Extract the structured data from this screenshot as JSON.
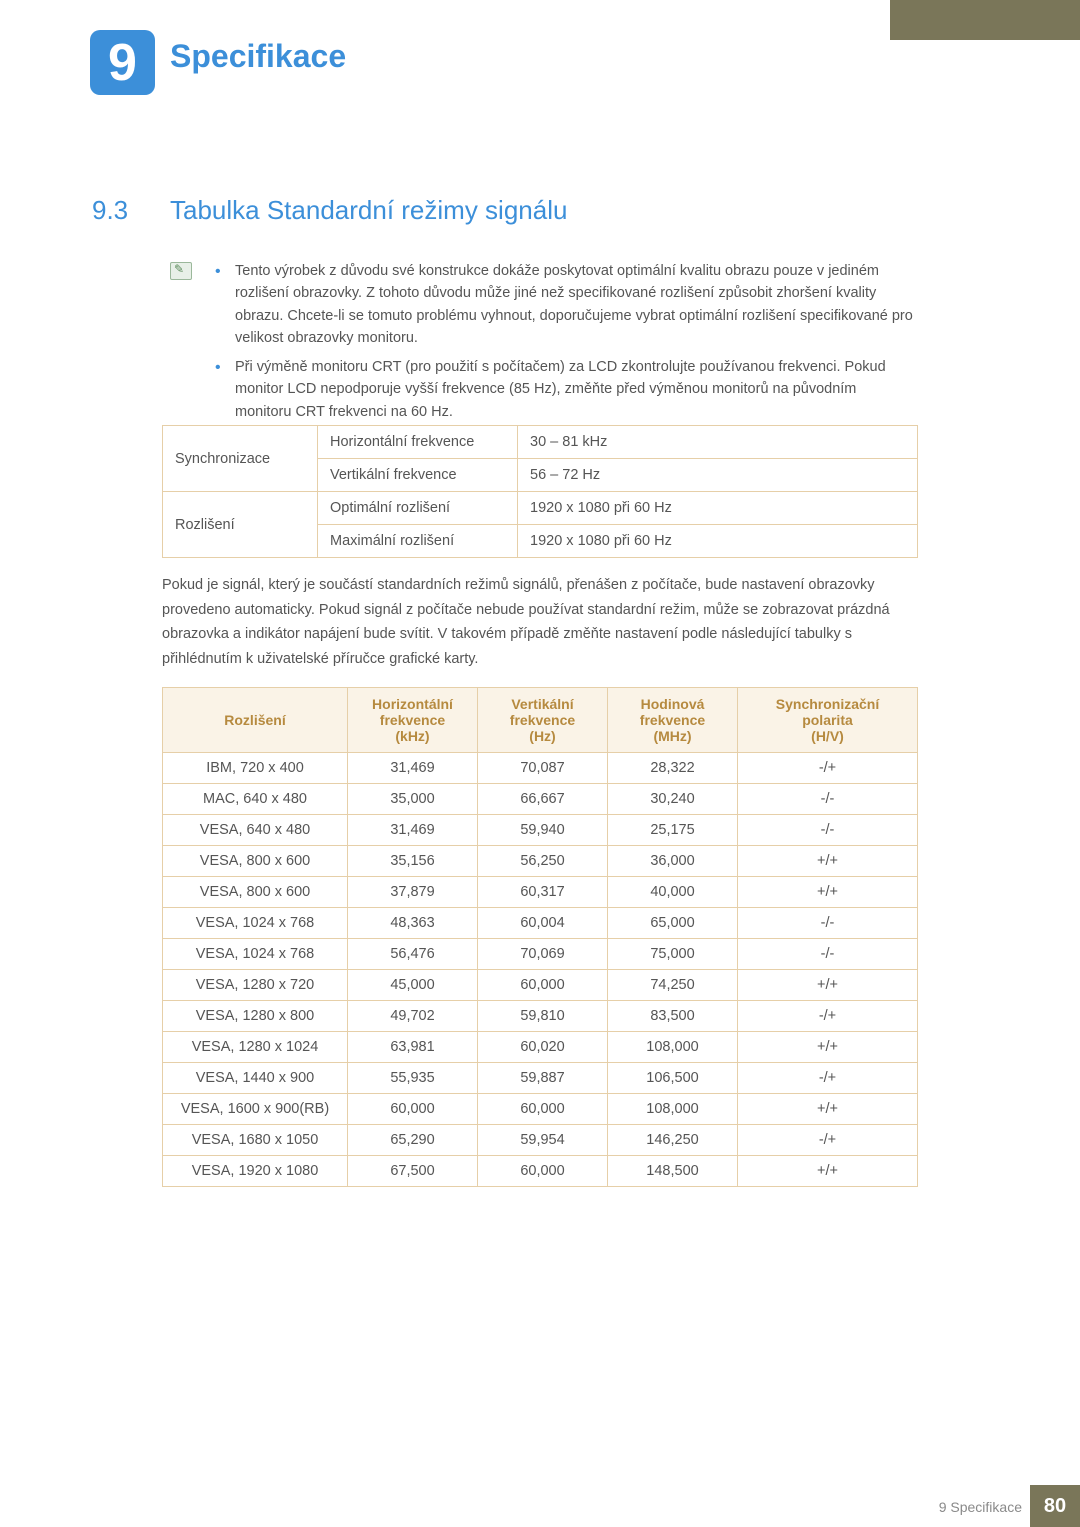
{
  "chapter": {
    "number": "9",
    "title": "Specifikace"
  },
  "section": {
    "number": "9.3",
    "title": "Tabulka Standardní režimy signálu"
  },
  "bullets": [
    "Tento výrobek z důvodu své konstrukce dokáže poskytovat optimální kvalitu obrazu pouze v jediném rozlišení obrazovky. Z tohoto důvodu může jiné než specifikované rozlišení způsobit zhoršení kvality obrazu. Chcete-li se tomuto problému vyhnout, doporučujeme vybrat optimální rozlišení specifikované pro velikost obrazovky monitoru.",
    "Při výměně monitoru CRT (pro použití s počítačem) za LCD zkontrolujte používanou frekvenci. Pokud monitor LCD nepodporuje vyšší frekvence (85 Hz), změňte před výměnou monitorů na původním monitoru CRT frekvenci na 60 Hz."
  ],
  "spec": {
    "r1c1": "Synchronizace",
    "r1c2": "Horizontální frekvence",
    "r1c3": "30 – 81 kHz",
    "r2c2": "Vertikální frekvence",
    "r2c3": "56 – 72 Hz",
    "r3c1": "Rozlišení",
    "r3c2": "Optimální rozlišení",
    "r3c3": "1920 x 1080 při 60 Hz",
    "r4c2": "Maximální rozlišení",
    "r4c3": "1920 x 1080 při 60 Hz"
  },
  "paragraph": "Pokud je signál, který je součástí standardních režimů signálů, přenášen z počítače, bude nastavení obrazovky provedeno automaticky. Pokud signál z počítače nebude používat standardní režim, může se zobrazovat prázdná obrazovka a indikátor napájení bude svítit. V takovém případě změňte nastavení podle následující tabulky s přihlédnutím k uživatelské příručce grafické karty.",
  "modeHeaders": {
    "c1": "Rozlišení",
    "c2a": "Horizontální",
    "c2b": "frekvence",
    "c2c": "(kHz)",
    "c3a": "Vertikální",
    "c3b": "frekvence",
    "c3c": "(Hz)",
    "c4a": "Hodinová",
    "c4b": "frekvence",
    "c4c": "(MHz)",
    "c5a": "Synchronizační",
    "c5b": "polarita",
    "c5c": "(H/V)"
  },
  "modes": [
    [
      "IBM, 720 x 400",
      "31,469",
      "70,087",
      "28,322",
      "-/+"
    ],
    [
      "MAC, 640 x 480",
      "35,000",
      "66,667",
      "30,240",
      "-/-"
    ],
    [
      "VESA, 640 x 480",
      "31,469",
      "59,940",
      "25,175",
      "-/-"
    ],
    [
      "VESA, 800 x 600",
      "35,156",
      "56,250",
      "36,000",
      "+/+"
    ],
    [
      "VESA, 800 x 600",
      "37,879",
      "60,317",
      "40,000",
      "+/+"
    ],
    [
      "VESA, 1024 x 768",
      "48,363",
      "60,004",
      "65,000",
      "-/-"
    ],
    [
      "VESA, 1024 x 768",
      "56,476",
      "70,069",
      "75,000",
      "-/-"
    ],
    [
      "VESA, 1280 x 720",
      "45,000",
      "60,000",
      "74,250",
      "+/+"
    ],
    [
      "VESA, 1280 x 800",
      "49,702",
      "59,810",
      "83,500",
      "-/+"
    ],
    [
      "VESA, 1280 x 1024",
      "63,981",
      "60,020",
      "108,000",
      "+/+"
    ],
    [
      "VESA, 1440 x 900",
      "55,935",
      "59,887",
      "106,500",
      "-/+"
    ],
    [
      "VESA, 1600 x 900(RB)",
      "60,000",
      "60,000",
      "108,000",
      "+/+"
    ],
    [
      "VESA, 1680 x 1050",
      "65,290",
      "59,954",
      "146,250",
      "-/+"
    ],
    [
      "VESA, 1920 x 1080",
      "67,500",
      "60,000",
      "148,500",
      "+/+"
    ]
  ],
  "footer": {
    "label": "9 Specifikace",
    "page": "80"
  },
  "colors": {
    "accent": "#3c8fd9",
    "brand": "#7a7659",
    "tableBorder": "#e6cfa8",
    "headerBg": "#faf3e7",
    "headerText": "#b68a3f"
  }
}
